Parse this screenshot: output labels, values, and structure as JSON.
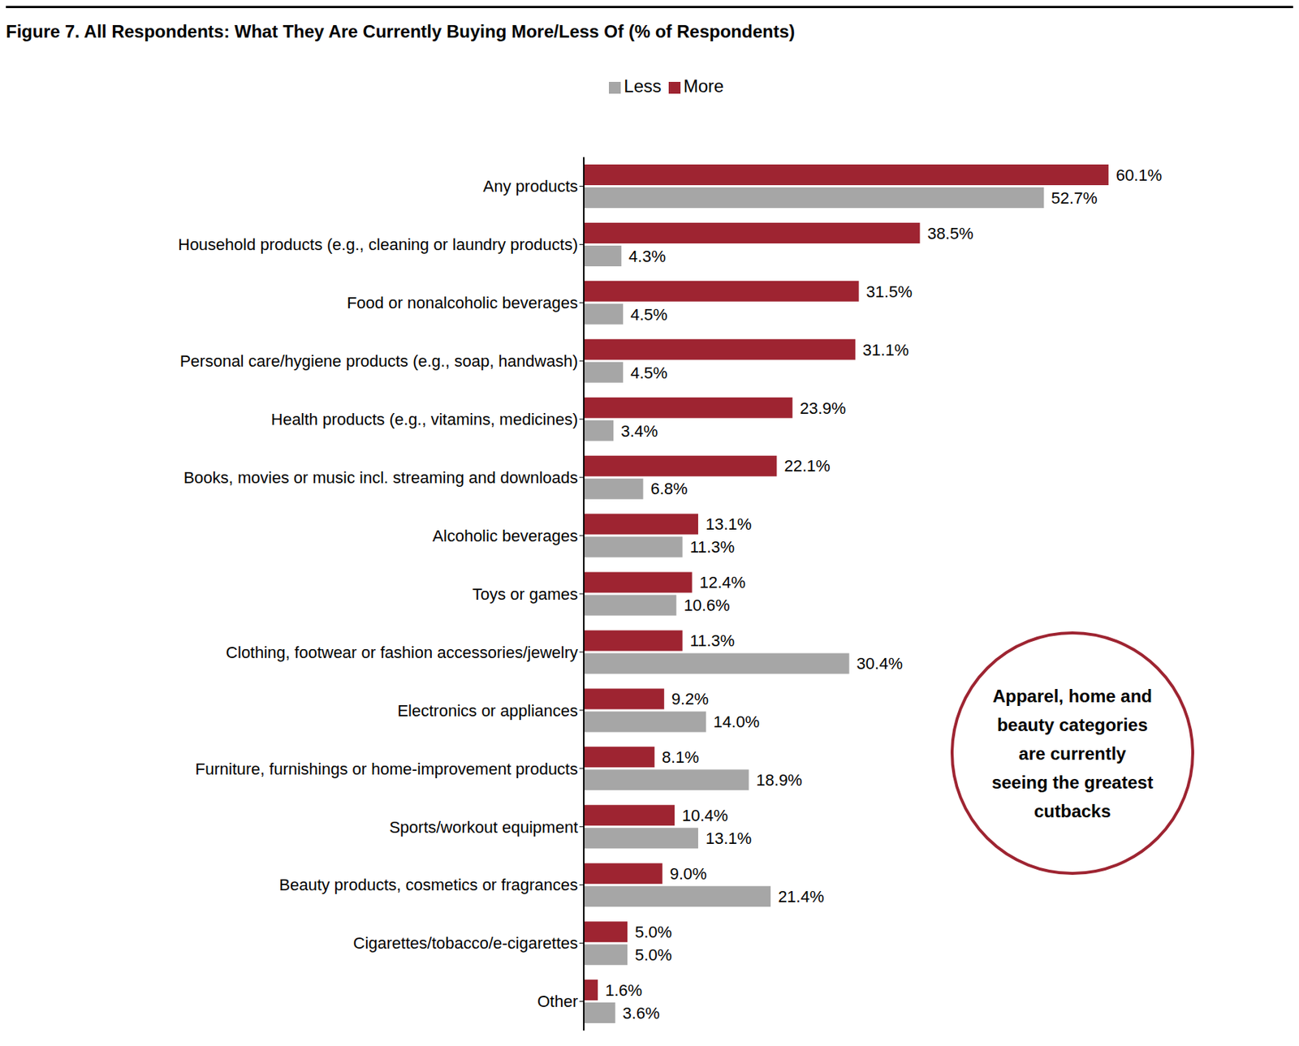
{
  "chart_data": {
    "type": "bar",
    "title": "Figure 7. All Respondents: What They Are Currently Buying More/Less Of (% of Respondents)",
    "orientation": "horizontal",
    "categories": [
      "Any products",
      "Household products (e.g., cleaning or laundry products)",
      "Food or nonalcoholic beverages",
      "Personal care/hygiene products (e.g., soap, handwash)",
      "Health products (e.g., vitamins, medicines)",
      "Books, movies or music incl. streaming and downloads",
      "Alcoholic beverages",
      "Toys or games",
      "Clothing, footwear or fashion accessories/jewelry",
      "Electronics or appliances",
      "Furniture, furnishings or home-improvement products",
      "Sports/workout equipment",
      "Beauty products, cosmetics or fragrances",
      "Cigarettes/tobacco/e-cigarettes",
      "Other"
    ],
    "series": [
      {
        "name": "More",
        "color": "#9e2431",
        "values": [
          60.1,
          38.5,
          31.5,
          31.1,
          23.9,
          22.1,
          13.1,
          12.4,
          11.3,
          9.2,
          8.1,
          10.4,
          9.0,
          5.0,
          1.6
        ],
        "value_labels": [
          "60.1%",
          "38.5%",
          "31.5%",
          "31.1%",
          "23.9%",
          "22.1%",
          "13.1%",
          "12.4%",
          "11.3%",
          "9.2%",
          "8.1%",
          "10.4%",
          "9.0%",
          "5.0%",
          "1.6%"
        ]
      },
      {
        "name": "Less",
        "color": "#a6a6a6",
        "values": [
          52.7,
          4.3,
          4.5,
          4.5,
          3.4,
          6.8,
          11.3,
          10.6,
          30.4,
          14.0,
          18.9,
          13.1,
          21.4,
          5.0,
          3.6
        ],
        "value_labels": [
          "52.7%",
          "4.3%",
          "4.5%",
          "4.5%",
          "3.4%",
          "6.8%",
          "11.3%",
          "10.6%",
          "30.4%",
          "14.0%",
          "18.9%",
          "13.1%",
          "21.4%",
          "5.0%",
          "3.6%"
        ]
      }
    ],
    "xlim": [
      0,
      70
    ],
    "data_labels": true,
    "tick_labels": "y",
    "legend": "top",
    "annotation": "Apparel, home and beauty categories are currently seeing the greatest cutbacks"
  }
}
